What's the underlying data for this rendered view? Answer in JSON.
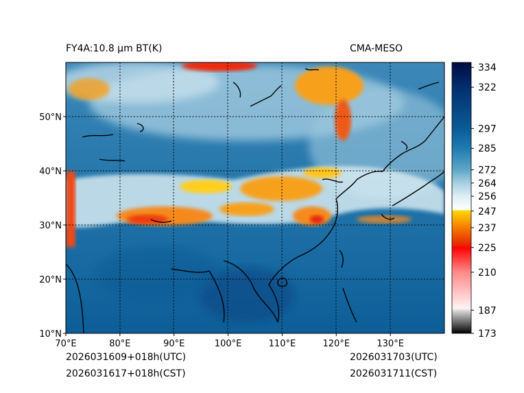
{
  "title_left": "FY4A:10.8 µm BT(K)",
  "title_right": "CMA-MESO",
  "footer": {
    "init_utc": "2026031609+018h(UTC)",
    "init_cst": "2026031617+018h(CST)",
    "valid_utc": "2026031703(UTC)",
    "valid_cst": "2026031711(CST)"
  },
  "map": {
    "lon_range": [
      70,
      140
    ],
    "lat_range": [
      10,
      60
    ],
    "lon_ticks": [
      {
        "value": 70,
        "label": "70°E"
      },
      {
        "value": 80,
        "label": "80°E"
      },
      {
        "value": 90,
        "label": "90°E"
      },
      {
        "value": 100,
        "label": "100°E"
      },
      {
        "value": 110,
        "label": "110°E"
      },
      {
        "value": 120,
        "label": "120°E"
      },
      {
        "value": 130,
        "label": "130°E"
      }
    ],
    "lat_ticks": [
      {
        "value": 10,
        "label": "10°N"
      },
      {
        "value": 20,
        "label": "20°N"
      },
      {
        "value": 30,
        "label": "30°N"
      },
      {
        "value": 40,
        "label": "40°N"
      },
      {
        "value": 50,
        "label": "50°N"
      }
    ]
  },
  "colorbar": {
    "range": [
      173,
      337
    ],
    "ticks": [
      334,
      322,
      297,
      285,
      272,
      264,
      256,
      247,
      237,
      225,
      210,
      187,
      173
    ],
    "stops": [
      {
        "value": 173,
        "color": "#000000"
      },
      {
        "value": 187,
        "color": "#dddddd"
      },
      {
        "value": 188,
        "color": "#fff4f4"
      },
      {
        "value": 210,
        "color": "#ff8a8a"
      },
      {
        "value": 225,
        "color": "#ff0000"
      },
      {
        "value": 226,
        "color": "#e82000"
      },
      {
        "value": 237,
        "color": "#f57c00"
      },
      {
        "value": 247,
        "color": "#ffd400"
      },
      {
        "value": 248,
        "color": "#ffffff"
      },
      {
        "value": 256,
        "color": "#ddeef5"
      },
      {
        "value": 264,
        "color": "#a7cfe0"
      },
      {
        "value": 272,
        "color": "#5ea6c8"
      },
      {
        "value": 285,
        "color": "#1f7bb0"
      },
      {
        "value": 297,
        "color": "#0a5c96"
      },
      {
        "value": 322,
        "color": "#022e6e"
      },
      {
        "value": 337,
        "color": "#000c40"
      }
    ]
  }
}
